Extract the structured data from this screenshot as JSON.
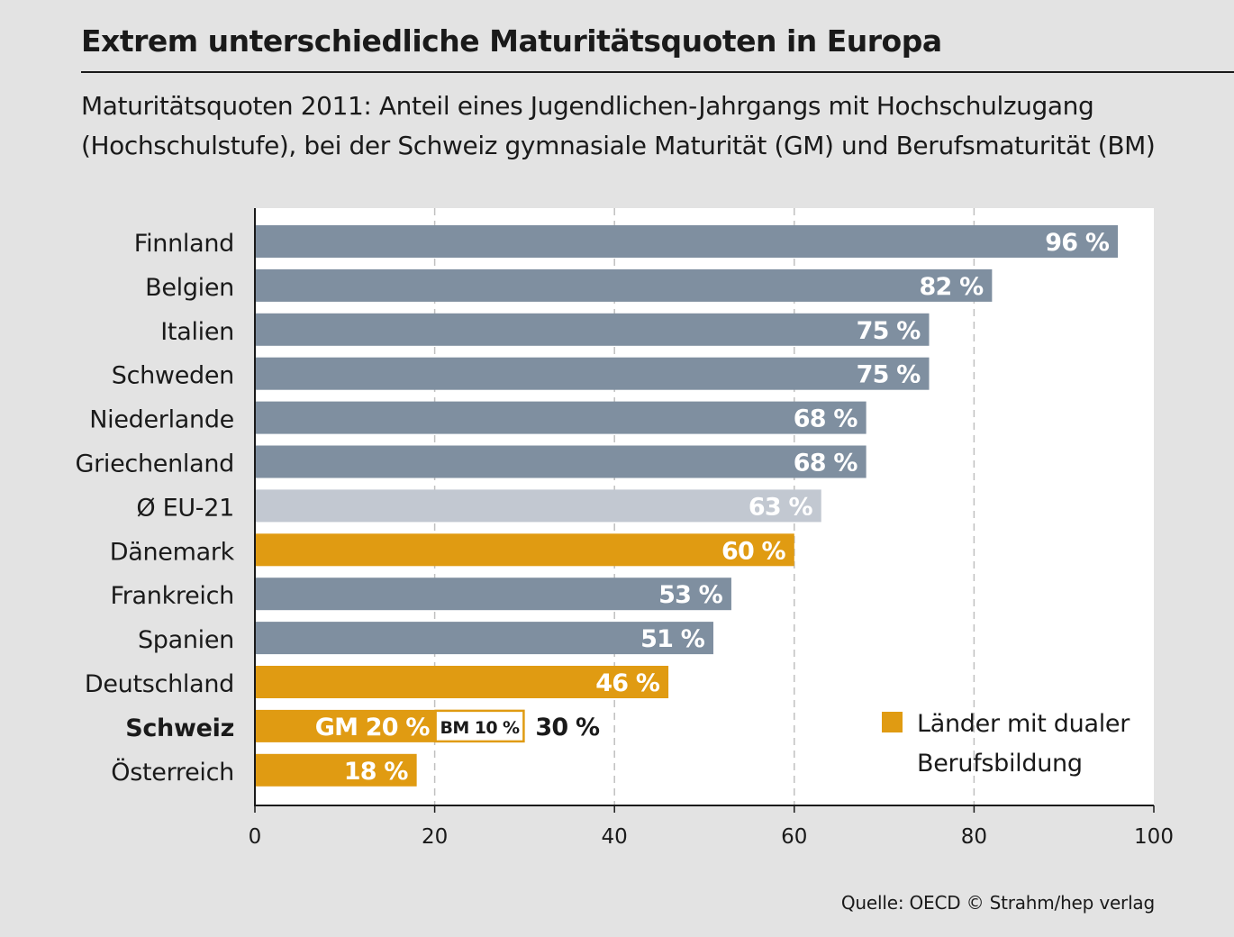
{
  "title": "Extrem unterschiedliche Maturitätsquoten in Europa",
  "subtitle_line1": "Maturitätsquoten 2011: Anteil eines Jugendlichen-Jahrgangs mit Hochschulzugang",
  "subtitle_line2": "(Hochschulstufe), bei der Schweiz gymnasiale Maturität (GM) und Berufsmaturität (BM)",
  "source": "Quelle: OECD  © Strahm/hep verlag",
  "legend_line1": "Länder mit dualer",
  "legend_line2": "Berufsbildung",
  "colors": {
    "default": "#7f8fa0",
    "eu": "#c2c8d1",
    "dual": "#e09b12",
    "plot_bg": "#ffffff",
    "grid": "#c0c0c0"
  },
  "chart_data": {
    "type": "bar",
    "orientation": "horizontal",
    "xlim": [
      0,
      100
    ],
    "xticks": [
      0,
      20,
      40,
      60,
      80,
      100
    ],
    "grid": "vertical dashed",
    "legend_position": "bottom-right",
    "categories": [
      "Finnland",
      "Belgien",
      "Italien",
      "Schweden",
      "Niederlande",
      "Griechenland",
      "Ø EU-21",
      "Dänemark",
      "Frankreich",
      "Spanien",
      "Deutschland",
      "Schweiz",
      "Österreich"
    ],
    "values": [
      96,
      82,
      75,
      75,
      68,
      68,
      63,
      60,
      53,
      51,
      46,
      30,
      18
    ],
    "kinds": [
      "default",
      "default",
      "default",
      "default",
      "default",
      "default",
      "eu",
      "dual",
      "default",
      "default",
      "dual",
      "dual",
      "dual"
    ],
    "labels": [
      "96 %",
      "82 %",
      "75 %",
      "75 %",
      "68 %",
      "68 %",
      "63 %",
      "60 %",
      "53 %",
      "51 %",
      "46 %",
      "30 %",
      "18 %"
    ],
    "schweiz_segments": [
      {
        "name": "GM",
        "value": 20,
        "label": "GM 20 %"
      },
      {
        "name": "BM",
        "value": 10,
        "label": "BM 10 %"
      }
    ],
    "schweiz_total_label": "30 %"
  }
}
